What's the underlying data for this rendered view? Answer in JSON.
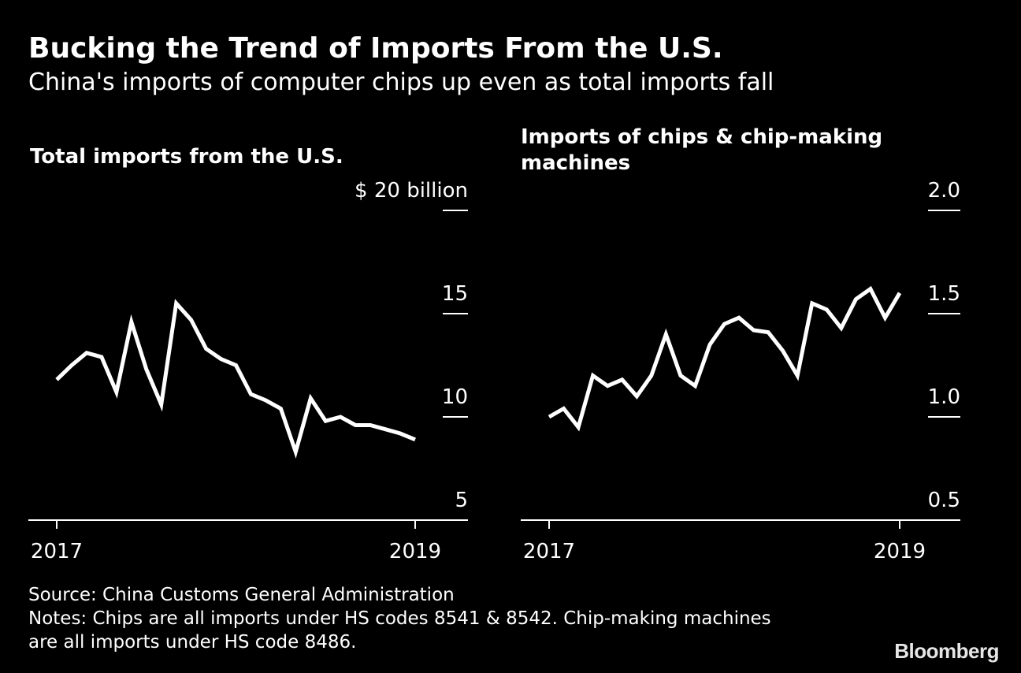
{
  "title": "Bucking the Trend of Imports From the U.S.",
  "subtitle": "China's imports of computer chips up even as total imports fall",
  "colors": {
    "background": "#000000",
    "line": "#ffffff",
    "text": "#ffffff"
  },
  "chart_data": [
    {
      "type": "line",
      "title": "Total imports from the U.S.",
      "ylabel": "",
      "yunit_label": "$ 20 billion",
      "ylim": [
        5,
        20
      ],
      "yticks": [
        20,
        15,
        10,
        5
      ],
      "ytick_labels": [
        "$ 20 billion",
        "15",
        "10",
        "5"
      ],
      "xlim": [
        2016.85,
        2019.3
      ],
      "xticks": [
        2017,
        2019
      ],
      "xtick_labels": [
        "2017",
        "2019"
      ],
      "grid": false,
      "series": [
        {
          "x": [
            2017.0,
            2017.0833,
            2017.1667,
            2017.25,
            2017.3333,
            2017.4167,
            2017.5,
            2017.5833,
            2017.6667,
            2017.75,
            2017.8333,
            2017.9167,
            2018.0,
            2018.0833,
            2018.1667,
            2018.25,
            2018.3333,
            2018.4167,
            2018.5,
            2018.5833,
            2018.6667,
            2018.75,
            2018.8333,
            2018.9167,
            2019.0
          ],
          "values": [
            11.8,
            12.5,
            13.1,
            12.9,
            11.2,
            14.6,
            12.3,
            10.6,
            15.5,
            14.7,
            13.3,
            12.8,
            12.5,
            11.1,
            10.8,
            10.4,
            8.3,
            10.9,
            9.8,
            10.0,
            9.6,
            9.6,
            9.4,
            9.2,
            8.9
          ],
          "note": "approximate monthly values read from the chart"
        }
      ]
    },
    {
      "type": "line",
      "title": "Imports of chips & chip-making machines",
      "ylabel": "",
      "ylim": [
        0.5,
        2.0
      ],
      "yticks": [
        2.0,
        1.5,
        1.0,
        0.5
      ],
      "ytick_labels": [
        "2.0",
        "1.5",
        "1.0",
        "0.5"
      ],
      "xlim": [
        2016.85,
        2019.3
      ],
      "xticks": [
        2017,
        2019
      ],
      "xtick_labels": [
        "2017",
        "2019"
      ],
      "grid": false,
      "series": [
        {
          "x": [
            2017.0,
            2017.0833,
            2017.1667,
            2017.25,
            2017.3333,
            2017.4167,
            2017.5,
            2017.5833,
            2017.6667,
            2017.75,
            2017.8333,
            2017.9167,
            2018.0,
            2018.0833,
            2018.1667,
            2018.25,
            2018.3333,
            2018.4167,
            2018.5,
            2018.5833,
            2018.6667,
            2018.75,
            2018.8333,
            2018.9167,
            2019.0
          ],
          "values": [
            1.0,
            1.04,
            0.95,
            1.2,
            1.15,
            1.18,
            1.1,
            1.2,
            1.4,
            1.2,
            1.15,
            1.35,
            1.45,
            1.48,
            1.42,
            1.41,
            1.32,
            1.2,
            1.55,
            1.52,
            1.43,
            1.57,
            1.62,
            1.48,
            1.6
          ],
          "note": "approximate monthly values read from the chart"
        }
      ]
    }
  ],
  "footer": {
    "source": "Source: China Customs General Administration",
    "notes_line1": "Notes: Chips are all imports under HS codes 8541 & 8542. Chip-making machines",
    "notes_line2": "are all imports under HS code 8486."
  },
  "brand": "Bloomberg"
}
